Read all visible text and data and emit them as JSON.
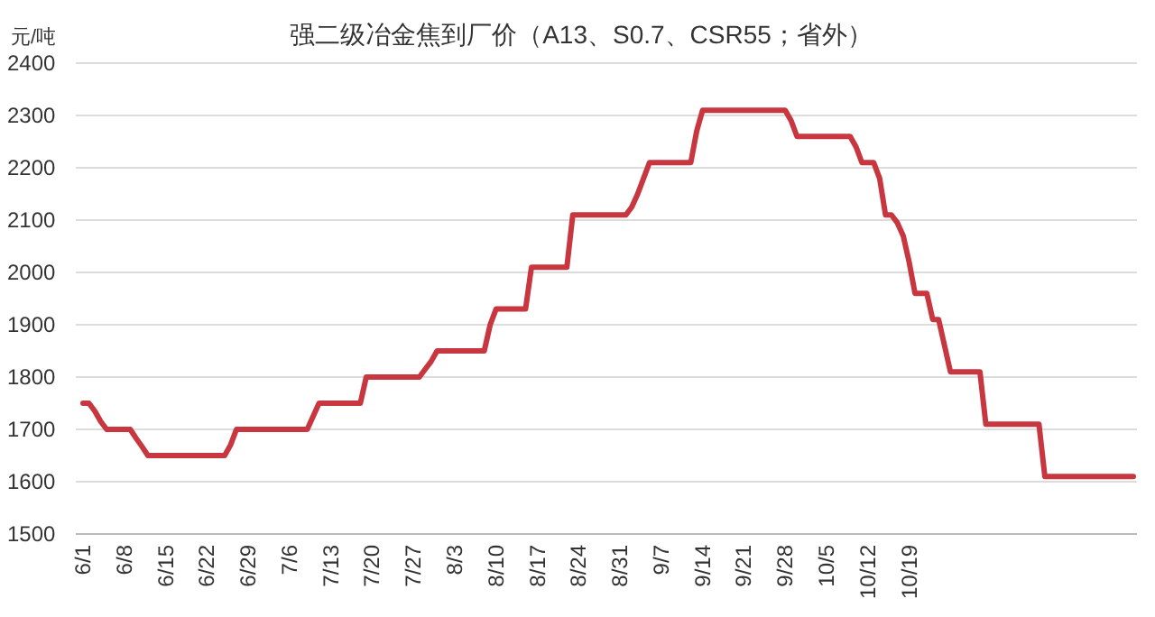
{
  "chart_data": {
    "type": "line",
    "title": "强二级冶金焦到厂价（A13、S0.7、CSR55；省外）",
    "ylabel": "元/吨",
    "categories": [
      "6/1",
      null,
      null,
      null,
      null,
      null,
      null,
      "6/8",
      null,
      null,
      null,
      null,
      null,
      null,
      "6/15",
      null,
      null,
      null,
      null,
      null,
      null,
      "6/22",
      null,
      null,
      null,
      null,
      null,
      null,
      "6/29",
      null,
      null,
      null,
      null,
      null,
      null,
      "7/6",
      null,
      null,
      null,
      null,
      null,
      null,
      "7/13",
      null,
      null,
      null,
      null,
      null,
      null,
      "7/20",
      null,
      null,
      null,
      null,
      null,
      null,
      "7/27",
      null,
      null,
      null,
      null,
      null,
      null,
      "8/3",
      null,
      null,
      null,
      null,
      null,
      null,
      "8/10",
      null,
      null,
      null,
      null,
      null,
      null,
      "8/17",
      null,
      null,
      null,
      null,
      null,
      null,
      "8/24",
      null,
      null,
      null,
      null,
      null,
      null,
      "8/31",
      null,
      null,
      null,
      null,
      null,
      null,
      "9/7",
      null,
      null,
      null,
      null,
      null,
      null,
      "9/14",
      null,
      null,
      null,
      null,
      null,
      null,
      "9/21",
      null,
      null,
      null,
      null,
      null,
      null,
      "9/28",
      null,
      null,
      null,
      null,
      null,
      null,
      "10/5",
      null,
      null,
      null,
      null,
      null,
      null,
      "10/12",
      null,
      null,
      null,
      null,
      null,
      null,
      "10/19",
      null,
      null,
      null,
      null,
      null,
      null,
      null,
      null,
      null,
      null,
      null,
      null,
      null,
      null,
      null,
      null,
      null,
      null,
      null,
      null,
      null,
      null,
      null,
      null,
      null,
      null,
      null,
      null,
      null,
      null,
      null,
      null,
      null,
      null,
      null,
      null,
      null,
      null
    ],
    "series": [
      {
        "color": "#c8373f",
        "values": [
          1750,
          1750,
          1735,
          1715,
          1700,
          1700,
          1700,
          1700,
          1700,
          1683,
          1667,
          1650,
          1650,
          1650,
          1650,
          1650,
          1650,
          1650,
          1650,
          1650,
          1650,
          1650,
          1650,
          1650,
          1650,
          1670,
          1700,
          1700,
          1700,
          1700,
          1700,
          1700,
          1700,
          1700,
          1700,
          1700,
          1700,
          1700,
          1700,
          1725,
          1750,
          1750,
          1750,
          1750,
          1750,
          1750,
          1750,
          1750,
          1800,
          1800,
          1800,
          1800,
          1800,
          1800,
          1800,
          1800,
          1800,
          1800,
          1815,
          1830,
          1850,
          1850,
          1850,
          1850,
          1850,
          1850,
          1850,
          1850,
          1850,
          1900,
          1930,
          1930,
          1930,
          1930,
          1930,
          1930,
          2010,
          2010,
          2010,
          2010,
          2010,
          2010,
          2010,
          2110,
          2110,
          2110,
          2110,
          2110,
          2110,
          2110,
          2110,
          2110,
          2110,
          2125,
          2150,
          2180,
          2210,
          2210,
          2210,
          2210,
          2210,
          2210,
          2210,
          2210,
          2270,
          2310,
          2310,
          2310,
          2310,
          2310,
          2310,
          2310,
          2310,
          2310,
          2310,
          2310,
          2310,
          2310,
          2310,
          2310,
          2290,
          2260,
          2260,
          2260,
          2260,
          2260,
          2260,
          2260,
          2260,
          2260,
          2260,
          2240,
          2210,
          2210,
          2210,
          2180,
          2110,
          2110,
          2095,
          2070,
          2020,
          1960,
          1960,
          1960,
          1910,
          1910,
          1860,
          1810,
          1810,
          1810,
          1810,
          1810,
          1810,
          1710,
          1710,
          1710,
          1710,
          1710,
          1710,
          1710,
          1710,
          1710,
          1710,
          1610,
          1610,
          1610,
          1610,
          1610,
          1610,
          1610,
          1610,
          1610,
          1610,
          1610,
          1610,
          1610,
          1610,
          1610,
          1610
        ]
      }
    ],
    "ylim": [
      1500,
      2400
    ],
    "yticks": [
      1500,
      1600,
      1700,
      1800,
      1900,
      2000,
      2100,
      2200,
      2300,
      2400
    ],
    "grid": "y",
    "marker": "none",
    "line_style": "solid"
  }
}
